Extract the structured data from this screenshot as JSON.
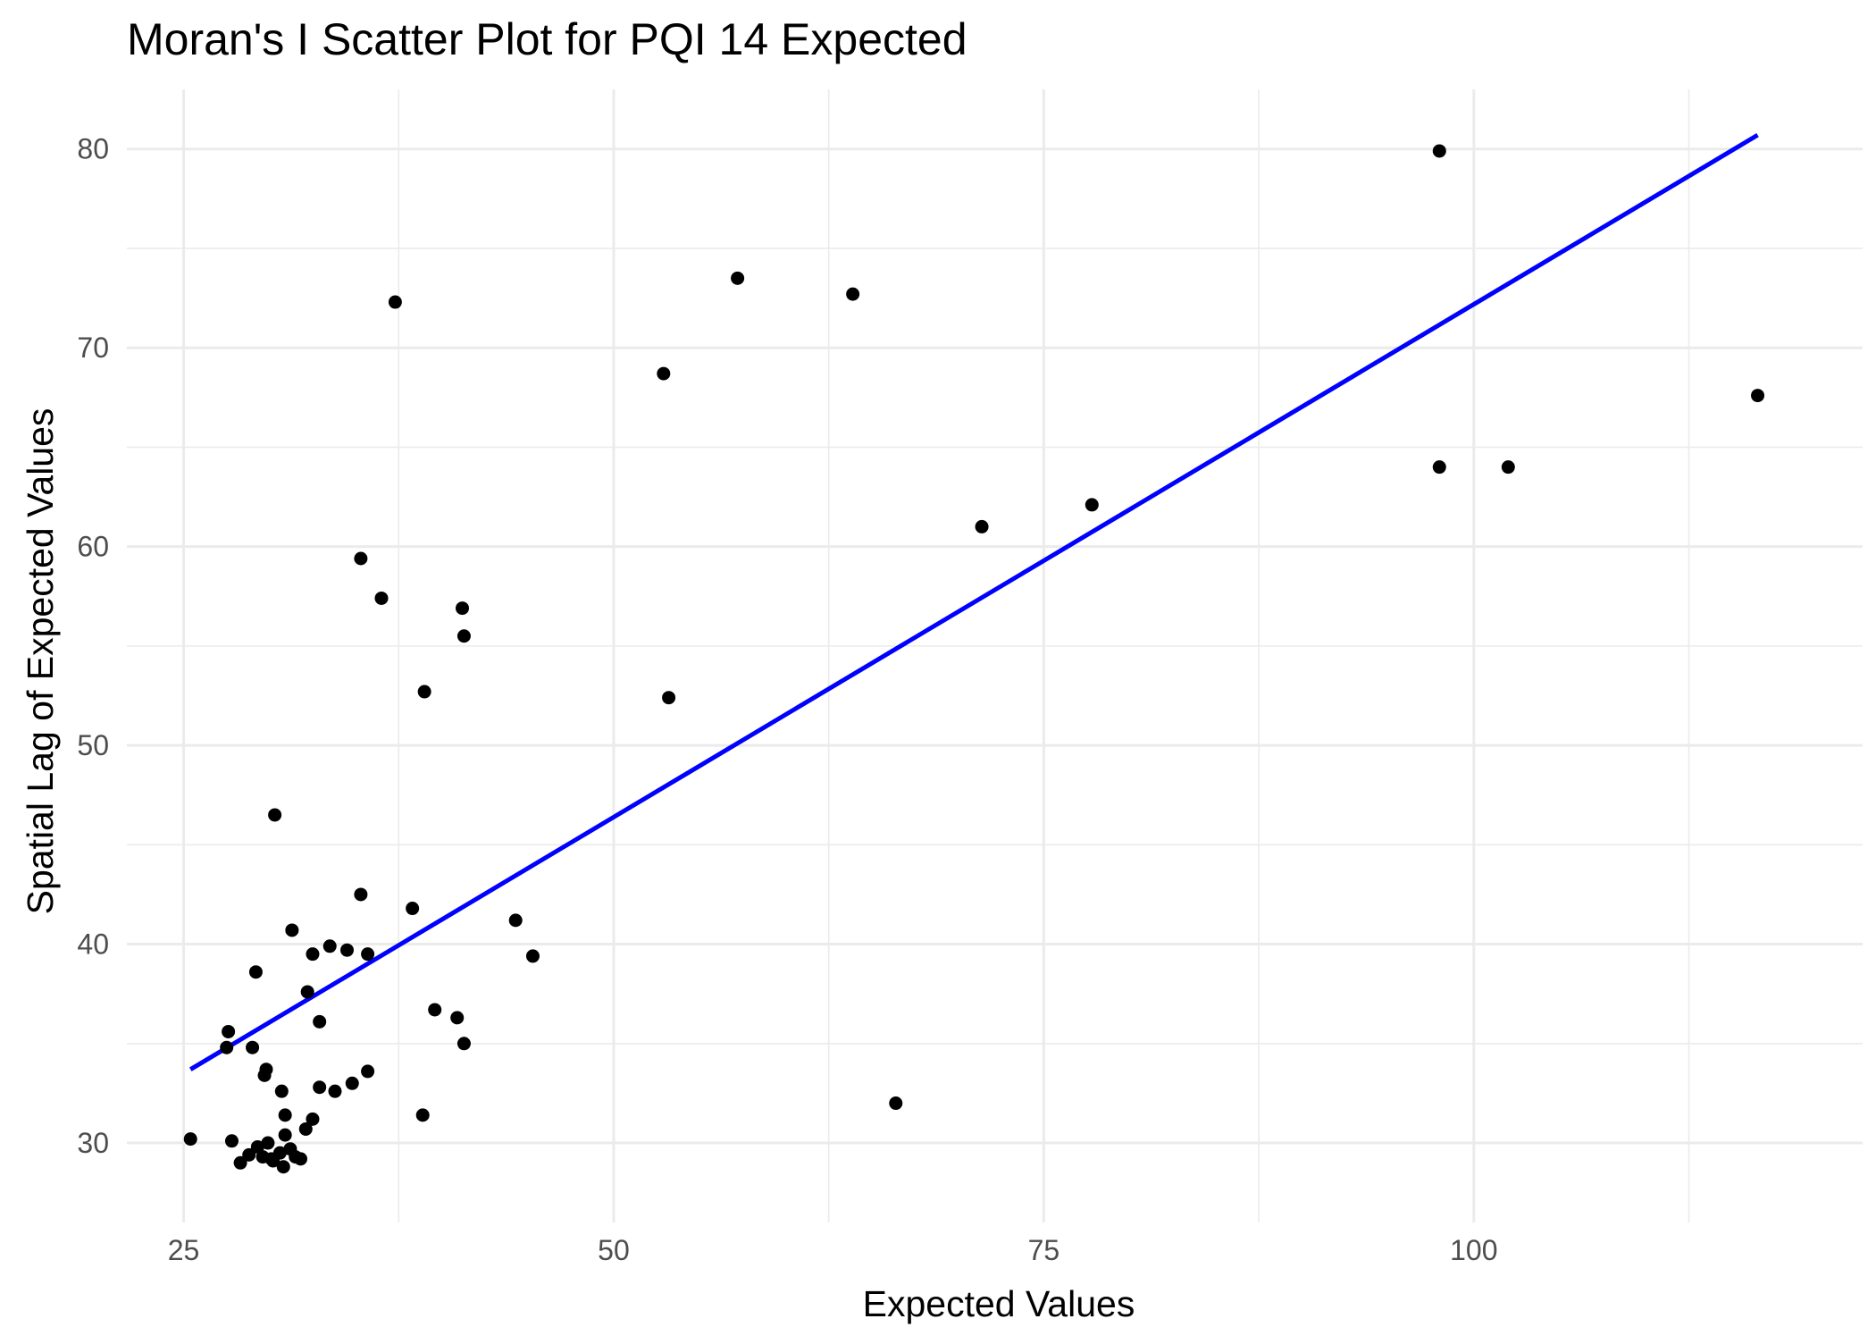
{
  "chart_data": {
    "type": "scatter",
    "title": "Moran's I Scatter Plot for PQI 14 Expected",
    "xlabel": "Expected Values",
    "ylabel": "Spatial Lag of Expected Values",
    "xlim": [
      21.7,
      122.6
    ],
    "ylim": [
      26.0,
      83.0
    ],
    "x_ticks": [
      25,
      50,
      75,
      100
    ],
    "x_tick_labels": [
      "25",
      "50",
      "75",
      "100"
    ],
    "y_ticks": [
      30,
      40,
      50,
      60,
      70,
      80
    ],
    "y_tick_labels": [
      "30",
      "40",
      "50",
      "60",
      "70",
      "80"
    ],
    "grid": true,
    "legend": "none",
    "point_color": "#000000",
    "line_color": "#0000ff",
    "series": [
      {
        "type": "scatter",
        "points": [
          [
            25.4,
            30.2
          ],
          [
            27.6,
            35.6
          ],
          [
            27.5,
            34.8
          ],
          [
            27.8,
            30.1
          ],
          [
            28.3,
            29.0
          ],
          [
            28.8,
            29.4
          ],
          [
            29.0,
            34.8
          ],
          [
            29.2,
            38.6
          ],
          [
            29.3,
            29.8
          ],
          [
            29.6,
            29.3
          ],
          [
            29.7,
            33.4
          ],
          [
            29.8,
            33.7
          ],
          [
            29.9,
            30.0
          ],
          [
            30.1,
            29.2
          ],
          [
            30.2,
            29.1
          ],
          [
            30.3,
            46.5
          ],
          [
            30.6,
            29.5
          ],
          [
            30.7,
            32.6
          ],
          [
            30.8,
            28.8
          ],
          [
            30.9,
            30.4
          ],
          [
            30.9,
            31.4
          ],
          [
            31.2,
            29.7
          ],
          [
            31.3,
            40.7
          ],
          [
            31.5,
            29.3
          ],
          [
            31.8,
            29.2
          ],
          [
            32.1,
            30.7
          ],
          [
            32.2,
            37.6
          ],
          [
            32.5,
            39.5
          ],
          [
            32.5,
            31.2
          ],
          [
            32.9,
            36.1
          ],
          [
            32.9,
            32.8
          ],
          [
            33.5,
            39.9
          ],
          [
            33.8,
            32.6
          ],
          [
            34.5,
            39.7
          ],
          [
            34.8,
            33.0
          ],
          [
            35.3,
            59.4
          ],
          [
            35.3,
            42.5
          ],
          [
            35.7,
            39.5
          ],
          [
            35.7,
            33.6
          ],
          [
            36.5,
            57.4
          ],
          [
            37.3,
            72.3
          ],
          [
            38.3,
            41.8
          ],
          [
            38.9,
            31.4
          ],
          [
            39.0,
            52.7
          ],
          [
            39.6,
            36.7
          ],
          [
            40.9,
            36.3
          ],
          [
            41.2,
            56.9
          ],
          [
            41.3,
            55.5
          ],
          [
            41.3,
            35.0
          ],
          [
            44.3,
            41.2
          ],
          [
            45.3,
            39.4
          ],
          [
            52.9,
            68.7
          ],
          [
            53.2,
            52.4
          ],
          [
            57.2,
            73.5
          ],
          [
            63.9,
            72.7
          ],
          [
            66.4,
            32.0
          ],
          [
            71.4,
            61.0
          ],
          [
            77.8,
            62.1
          ],
          [
            98.0,
            79.9
          ],
          [
            98.0,
            64.0
          ],
          [
            102.0,
            64.0
          ],
          [
            116.5,
            67.6
          ]
        ]
      },
      {
        "type": "line",
        "x": [
          25.4,
          116.5
        ],
        "y": [
          33.7,
          80.7
        ]
      }
    ]
  }
}
